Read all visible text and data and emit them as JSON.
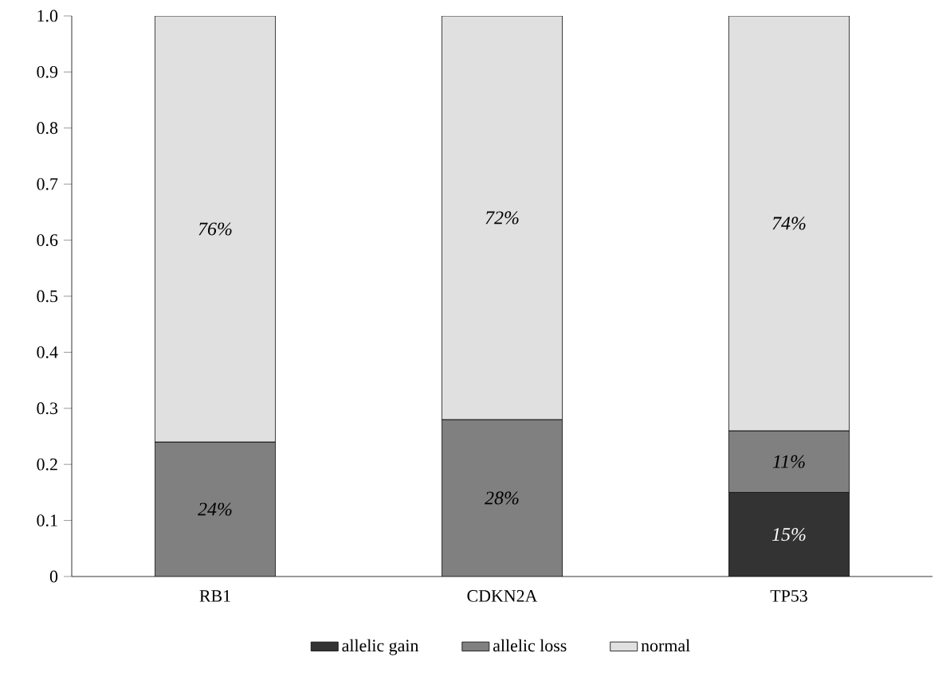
{
  "chart_data": {
    "type": "bar",
    "stacked": true,
    "categories": [
      "RB1",
      "CDKN2A",
      "TP53"
    ],
    "series": [
      {
        "name": "allelic gain",
        "color": "#333333",
        "values": [
          null,
          null,
          0.15
        ],
        "value_labels": [
          null,
          null,
          "15%"
        ]
      },
      {
        "name": "allelic loss",
        "color": "#808080",
        "values": [
          0.24,
          0.28,
          0.11
        ],
        "value_labels": [
          "24%",
          "28%",
          "11%"
        ]
      },
      {
        "name": "normal",
        "color": "#e0e0e0",
        "values": [
          0.76,
          0.72,
          0.74
        ],
        "value_labels": [
          "76%",
          "72%",
          "74%"
        ]
      }
    ],
    "ylim": [
      0,
      1
    ],
    "yticks": [
      0,
      0.1,
      0.2,
      0.3,
      0.4,
      0.5,
      0.6,
      0.7,
      0.8,
      0.9,
      {
        "value": 1,
        "label": "1.0"
      }
    ],
    "legend": "bottom",
    "grid": false
  }
}
